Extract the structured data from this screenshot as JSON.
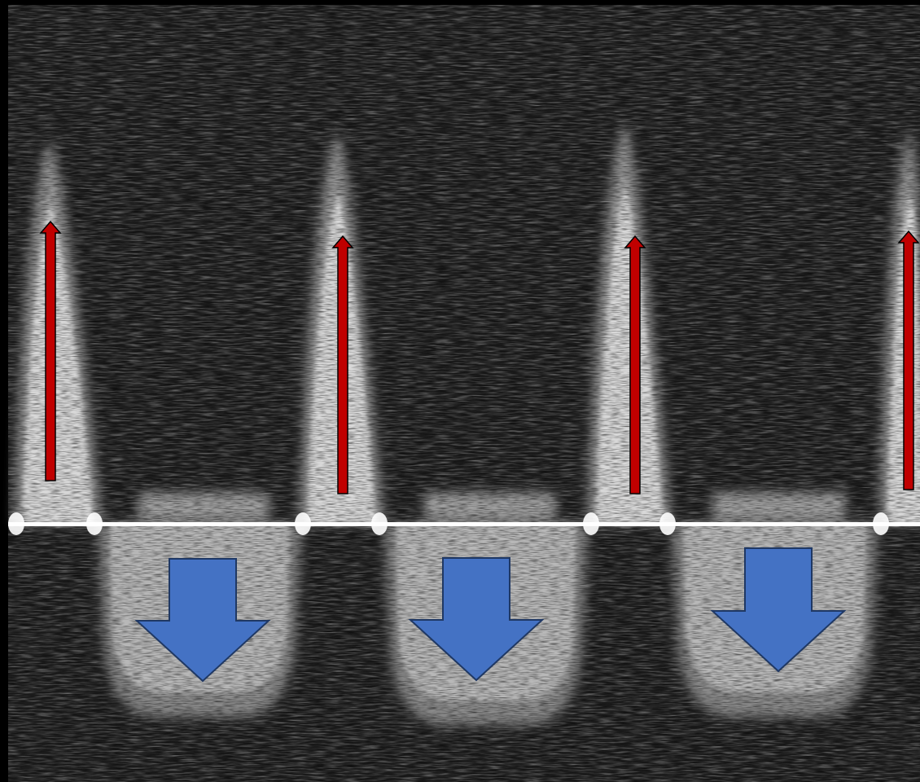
{
  "image": {
    "kind": "spectral-doppler-tracing",
    "background_color": "#000000",
    "speckle_color": "#ffffff",
    "baseline_color": "#ffffff",
    "forward_flow_beats": 4,
    "reverse_flow_beats": 3
  },
  "annotations": {
    "up_arrow": {
      "icon": "thin-up-arrow-icon",
      "color": "#c00000",
      "outline": "#000000",
      "count": 4
    },
    "down_arrow": {
      "icon": "block-down-arrow-icon",
      "color": "#4472c4",
      "outline": "#1f3864",
      "count": 3
    }
  }
}
